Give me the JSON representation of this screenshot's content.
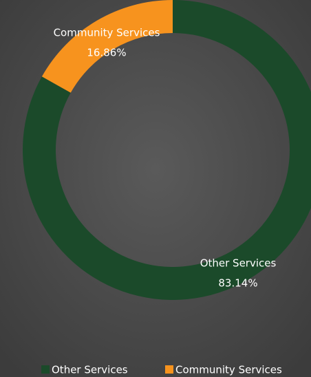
{
  "chart_data": {
    "type": "donut",
    "categories": [
      "Other Services",
      "Community Services"
    ],
    "values": [
      83.14,
      16.86
    ],
    "value_labels": [
      "83.14%",
      "16.86%"
    ],
    "colors": [
      "#1b4a2a",
      "#f7931e"
    ],
    "legend": "bottom"
  }
}
